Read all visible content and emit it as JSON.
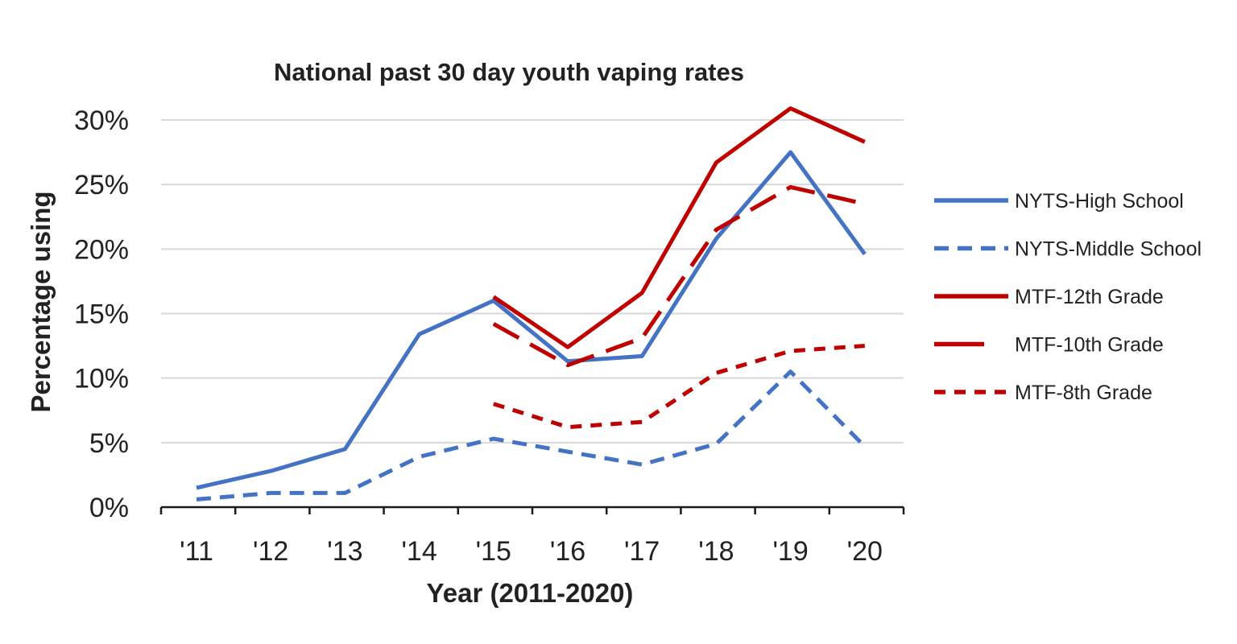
{
  "chart_data": {
    "type": "line",
    "title": "National past 30 day youth vaping rates",
    "xlabel": "Year (2011-2020)",
    "ylabel": "Percentage using",
    "categories": [
      "'11",
      "'12",
      "'13",
      "'14",
      "'15",
      "'16",
      "'17",
      "'18",
      "'19",
      "'20"
    ],
    "ylim": [
      0,
      30
    ],
    "yticks": [
      0,
      5,
      10,
      15,
      20,
      25,
      30
    ],
    "ytick_labels": [
      "0%",
      "5%",
      "10%",
      "15%",
      "20%",
      "25%",
      "30%"
    ],
    "grid": true,
    "legend_position": "right",
    "series": [
      {
        "name": "NYTS-High School",
        "color": "#4472C4",
        "style": "solid",
        "values": [
          1.5,
          2.8,
          4.5,
          13.4,
          16.0,
          11.3,
          11.7,
          20.8,
          27.5,
          19.6
        ]
      },
      {
        "name": "NYTS-Middle School",
        "color": "#4472C4",
        "style": "dashed",
        "values": [
          0.6,
          1.1,
          1.1,
          3.9,
          5.3,
          4.3,
          3.3,
          4.9,
          10.5,
          4.7
        ]
      },
      {
        "name": "MTF-12th Grade",
        "color": "#C00000",
        "style": "solid",
        "values": [
          null,
          null,
          null,
          null,
          16.3,
          12.4,
          16.6,
          26.7,
          30.9,
          28.3
        ]
      },
      {
        "name": "MTF-10th Grade",
        "color": "#C00000",
        "style": "long-dash",
        "values": [
          null,
          null,
          null,
          null,
          14.2,
          11.0,
          13.1,
          21.5,
          24.8,
          23.5
        ]
      },
      {
        "name": "MTF-8th Grade",
        "color": "#C00000",
        "style": "short-dash",
        "values": [
          null,
          null,
          null,
          null,
          8.0,
          6.2,
          6.6,
          10.4,
          12.1,
          12.5
        ]
      }
    ]
  }
}
